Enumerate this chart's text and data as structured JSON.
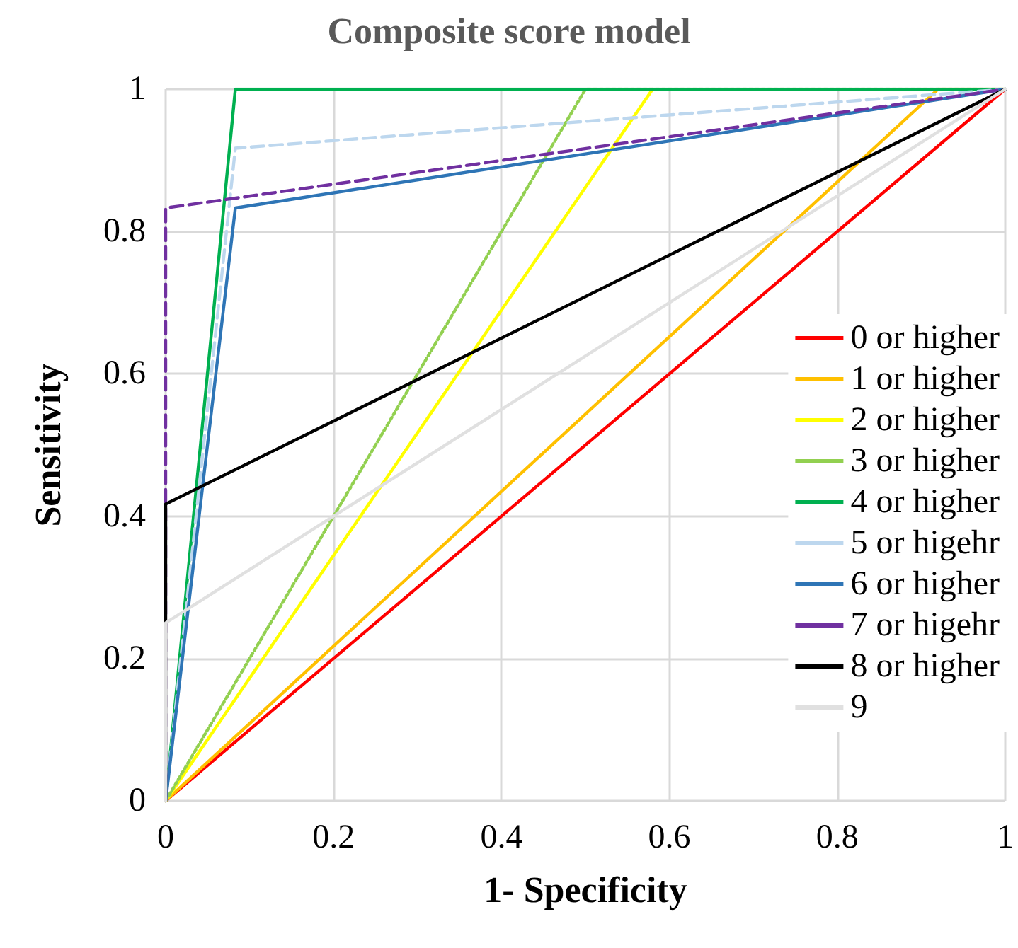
{
  "chart_data": {
    "type": "line",
    "title": "Composite score model",
    "xlabel": "1- Specificity",
    "ylabel": "Sensitivity",
    "xlim": [
      0,
      1
    ],
    "ylim": [
      0,
      1
    ],
    "xticks": [
      0,
      0.2,
      0.4,
      0.6,
      0.8,
      1
    ],
    "yticks": [
      0,
      0.2,
      0.4,
      0.6,
      0.8,
      1
    ],
    "grid": true,
    "legend": "right",
    "marker": "none",
    "series": [
      {
        "name": "0 or higher",
        "color": "#ff0000",
        "x": [
          0,
          1
        ],
        "values": [
          0,
          1
        ]
      },
      {
        "name": "1 or higher",
        "color": "#ffc000",
        "x": [
          0,
          0.92,
          1
        ],
        "values": [
          0,
          1,
          1
        ]
      },
      {
        "name": "2 or higher",
        "color": "#ffff00",
        "x": [
          0,
          0.58
        ],
        "values": [
          0,
          1
        ]
      },
      {
        "name": "3 or higher",
        "color": "#92d050",
        "x": [
          0,
          0.5,
          1
        ],
        "values": [
          0,
          1,
          1
        ],
        "line_style": "dotted"
      },
      {
        "name": "4 or higher",
        "color": "#00b050",
        "x": [
          0,
          0.083,
          1
        ],
        "values": [
          0,
          1,
          1
        ]
      },
      {
        "name": "5 or higehr",
        "color": "#bdd7ee",
        "x": [
          0,
          0.083,
          1
        ],
        "values": [
          0,
          0.917,
          1
        ],
        "line_style": "dashed"
      },
      {
        "name": "6 or higher",
        "color": "#2e75b6",
        "x": [
          0,
          0.083,
          1
        ],
        "values": [
          0,
          0.833,
          1
        ]
      },
      {
        "name": "7 or higehr",
        "color": "#7030a0",
        "x": [
          0,
          0,
          1
        ],
        "values": [
          0,
          0.833,
          1
        ],
        "line_style": "dashed"
      },
      {
        "name": "8 or higher",
        "color": "#000000",
        "x": [
          0,
          0,
          1
        ],
        "values": [
          0,
          0.417,
          1
        ]
      },
      {
        "name": "9",
        "color": "#e0e0e0",
        "x": [
          0,
          0,
          1
        ],
        "values": [
          0,
          0.25,
          1
        ]
      }
    ]
  }
}
